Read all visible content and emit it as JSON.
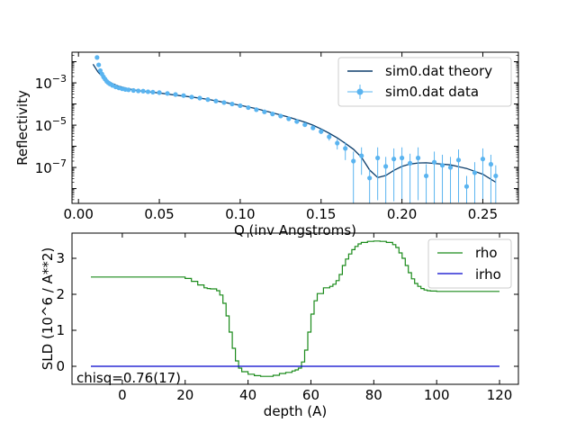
{
  "chart_data": [
    {
      "type": "scatter",
      "xlabel": "Q (inv Angstroms)",
      "ylabel": "Reflectivity",
      "yscale": "log",
      "xlim": [
        -0.004,
        0.272
      ],
      "ylim_exp": [
        -8.7,
        -1.55
      ],
      "x_ticks": [
        0.0,
        0.05,
        0.1,
        0.15,
        0.2,
        0.25
      ],
      "x_tick_labels": [
        "0.00",
        "0.05",
        "0.10",
        "0.15",
        "0.20",
        "0.25"
      ],
      "y_tick_exps": [
        -3,
        -5,
        -7
      ],
      "y_tick_labels": [
        "10^{-3}",
        "10^{-5}",
        "10^{-7}"
      ],
      "legend_position": "top-right",
      "series": [
        {
          "name": "sim0.dat theory",
          "kind": "line",
          "color": "#0b3d6b",
          "x": [
            0.009,
            0.012,
            0.015,
            0.018,
            0.021,
            0.025,
            0.03,
            0.035,
            0.04,
            0.05,
            0.06,
            0.07,
            0.08,
            0.09,
            0.1,
            0.11,
            0.12,
            0.13,
            0.14,
            0.145,
            0.15,
            0.155,
            0.16,
            0.165,
            0.17,
            0.175,
            0.18,
            0.185,
            0.19,
            0.195,
            0.2,
            0.205,
            0.21,
            0.215,
            0.22,
            0.23,
            0.24,
            0.25,
            0.258
          ],
          "log10_y": [
            -2.12,
            -2.48,
            -2.73,
            -2.9,
            -3.03,
            -3.16,
            -3.26,
            -3.34,
            -3.4,
            -3.48,
            -3.58,
            -3.67,
            -3.78,
            -3.92,
            -4.06,
            -4.22,
            -4.42,
            -4.62,
            -4.86,
            -5.0,
            -5.18,
            -5.38,
            -5.6,
            -5.86,
            -6.14,
            -6.52,
            -7.12,
            -7.48,
            -7.38,
            -7.14,
            -6.95,
            -6.84,
            -6.79,
            -6.78,
            -6.81,
            -6.88,
            -7.05,
            -7.32,
            -7.7
          ]
        },
        {
          "name": "sim0.dat data",
          "kind": "errorbar",
          "color": "#5ab4f0",
          "x": [
            0.0115,
            0.0125,
            0.0135,
            0.0145,
            0.0155,
            0.0165,
            0.0175,
            0.0185,
            0.0195,
            0.021,
            0.023,
            0.025,
            0.027,
            0.029,
            0.031,
            0.034,
            0.037,
            0.04,
            0.043,
            0.046,
            0.05,
            0.055,
            0.06,
            0.065,
            0.07,
            0.075,
            0.08,
            0.085,
            0.09,
            0.095,
            0.1,
            0.105,
            0.11,
            0.115,
            0.12,
            0.125,
            0.13,
            0.135,
            0.14,
            0.145,
            0.15,
            0.155,
            0.16,
            0.165,
            0.17,
            0.175,
            0.18,
            0.185,
            0.19,
            0.195,
            0.2,
            0.205,
            0.21,
            0.215,
            0.22,
            0.225,
            0.23,
            0.235,
            0.24,
            0.245,
            0.25,
            0.255,
            0.258
          ],
          "log10_y": [
            -1.8,
            -2.15,
            -2.42,
            -2.58,
            -2.72,
            -2.83,
            -2.93,
            -3.0,
            -3.05,
            -3.12,
            -3.19,
            -3.24,
            -3.28,
            -3.31,
            -3.33,
            -3.36,
            -3.38,
            -3.39,
            -3.42,
            -3.44,
            -3.46,
            -3.5,
            -3.55,
            -3.6,
            -3.67,
            -3.72,
            -3.79,
            -3.86,
            -3.93,
            -4.0,
            -4.08,
            -4.17,
            -4.27,
            -4.37,
            -4.47,
            -4.57,
            -4.7,
            -4.83,
            -4.98,
            -5.13,
            -5.3,
            -5.55,
            -5.85,
            -6.1,
            -6.7,
            -6.45,
            -7.5,
            -6.55,
            -6.95,
            -6.6,
            -6.55,
            -6.8,
            -6.55,
            -7.4,
            -6.75,
            -6.9,
            -7.0,
            -6.65,
            -7.9,
            -7.25,
            -6.6,
            -6.85,
            -7.4
          ],
          "log10_err_lo": [
            0.05,
            0.04,
            0.04,
            0.04,
            0.04,
            0.03,
            0.03,
            0.03,
            0.03,
            0.03,
            0.03,
            0.03,
            0.03,
            0.03,
            0.03,
            0.03,
            0.03,
            0.03,
            0.03,
            0.03,
            0.03,
            0.03,
            0.03,
            0.03,
            0.03,
            0.03,
            0.03,
            0.03,
            0.03,
            0.03,
            0.04,
            0.04,
            0.04,
            0.05,
            0.05,
            0.06,
            0.06,
            0.07,
            0.08,
            0.1,
            0.12,
            0.18,
            0.3,
            0.55,
            2.0,
            0.9,
            1.2,
            2.0,
            2.0,
            2.0,
            2.0,
            2.0,
            2.0,
            1.3,
            2.0,
            2.0,
            2.0,
            2.0,
            0.8,
            2.0,
            2.0,
            2.0,
            1.3
          ],
          "log10_err_hi": [
            0.05,
            0.04,
            0.04,
            0.04,
            0.04,
            0.03,
            0.03,
            0.03,
            0.03,
            0.03,
            0.03,
            0.03,
            0.03,
            0.03,
            0.03,
            0.03,
            0.03,
            0.03,
            0.03,
            0.03,
            0.03,
            0.03,
            0.03,
            0.03,
            0.03,
            0.03,
            0.03,
            0.03,
            0.03,
            0.03,
            0.04,
            0.04,
            0.04,
            0.05,
            0.05,
            0.06,
            0.06,
            0.07,
            0.08,
            0.09,
            0.1,
            0.14,
            0.2,
            0.3,
            0.45,
            0.4,
            0.4,
            0.5,
            0.45,
            0.5,
            0.5,
            0.45,
            0.5,
            0.55,
            0.5,
            0.5,
            0.5,
            0.5,
            0.5,
            0.5,
            0.5,
            0.45,
            0.5
          ]
        }
      ]
    },
    {
      "type": "line",
      "xlabel": "depth (A)",
      "ylabel": "SLD (10^6 / A**2)",
      "xlim": [
        -16,
        126
      ],
      "ylim": [
        -0.5,
        3.7
      ],
      "x_ticks": [
        0,
        20,
        40,
        60,
        80,
        100,
        120
      ],
      "x_tick_labels": [
        "0",
        "20",
        "40",
        "60",
        "80",
        "100",
        "120"
      ],
      "y_ticks": [
        0,
        1,
        2,
        3
      ],
      "y_tick_labels": [
        "0",
        "1",
        "2",
        "3"
      ],
      "legend_position": "top-right",
      "annotation": "chisq=0.76(17)",
      "series": [
        {
          "name": "rho",
          "kind": "step",
          "color": "#1a8a1a",
          "x": [
            -10,
            18,
            20,
            22,
            24,
            26,
            27,
            28,
            30,
            31,
            32,
            33,
            34,
            35,
            36,
            37,
            38,
            40,
            42,
            44,
            46,
            48,
            50,
            52,
            54,
            55,
            56,
            57,
            58,
            59,
            60,
            61,
            62,
            64,
            66,
            67,
            68,
            69,
            70,
            71,
            72,
            73,
            74,
            75,
            76,
            78,
            80,
            82,
            84,
            86,
            87,
            88,
            89,
            90,
            91,
            92,
            93,
            94,
            95,
            96,
            97,
            98,
            100,
            120
          ],
          "y": [
            2.48,
            2.48,
            2.44,
            2.36,
            2.26,
            2.18,
            2.16,
            2.15,
            2.1,
            1.98,
            1.75,
            1.4,
            0.95,
            0.5,
            0.15,
            -0.05,
            -0.15,
            -0.22,
            -0.26,
            -0.28,
            -0.28,
            -0.25,
            -0.2,
            -0.17,
            -0.13,
            -0.1,
            -0.05,
            0.12,
            0.45,
            0.95,
            1.45,
            1.82,
            2.02,
            2.18,
            2.22,
            2.28,
            2.38,
            2.55,
            2.8,
            2.98,
            3.12,
            3.24,
            3.33,
            3.4,
            3.44,
            3.47,
            3.48,
            3.47,
            3.44,
            3.38,
            3.3,
            3.15,
            3.0,
            2.8,
            2.6,
            2.43,
            2.3,
            2.22,
            2.16,
            2.12,
            2.1,
            2.09,
            2.08,
            2.08
          ]
        },
        {
          "name": "irho",
          "kind": "step",
          "color": "#0000cc",
          "x": [
            -10,
            120
          ],
          "y": [
            0,
            0
          ]
        }
      ]
    }
  ]
}
